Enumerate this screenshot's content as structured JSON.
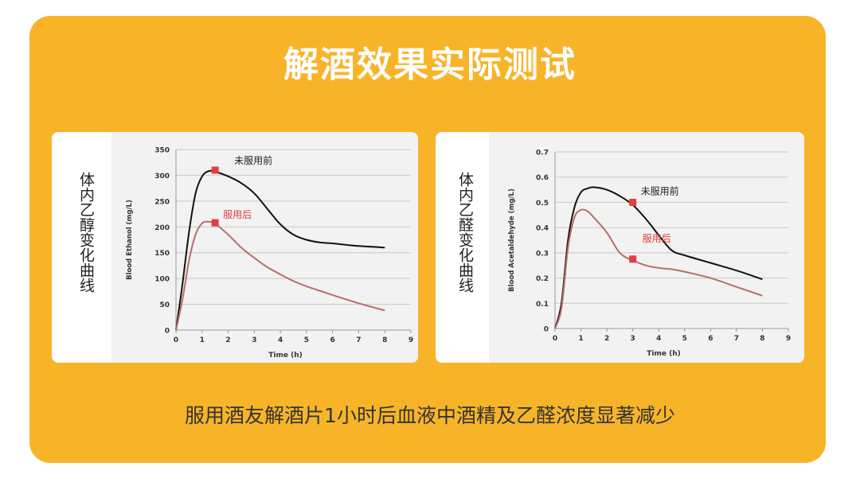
{
  "title": "解酒效果实际测试",
  "caption": "服用酒友解酒片1小时后血液中酒精及乙醛浓度显著减少",
  "colors": {
    "banner": "#F8B429",
    "series_before": "#111111",
    "series_after": "#B86E67",
    "marker": "#E04040",
    "label_after": "#E04040"
  },
  "chart_data": [
    {
      "type": "line",
      "side_label": "体内乙醇变化曲线",
      "xlabel": "Time (h)",
      "ylabel": "Blood Ethanol (mg/L)",
      "xlim": [
        0,
        9
      ],
      "ylim": [
        0,
        350
      ],
      "xticks": [
        "0",
        "1",
        "2",
        "3",
        "4",
        "5",
        "6",
        "7",
        "8",
        "9"
      ],
      "yticks": [
        "0",
        "50",
        "100",
        "150",
        "200",
        "250",
        "300",
        "350"
      ],
      "grid": true,
      "series": [
        {
          "name": "未服用前",
          "x": [
            0,
            0.25,
            0.5,
            0.75,
            1.0,
            1.25,
            1.5,
            2,
            2.5,
            3,
            3.5,
            4,
            4.5,
            5,
            5.5,
            6,
            7,
            8
          ],
          "y": [
            0,
            90,
            190,
            265,
            298,
            308,
            307,
            298,
            285,
            265,
            235,
            205,
            185,
            175,
            170,
            168,
            163,
            160
          ],
          "marker": {
            "x": 1.5,
            "y": 310
          },
          "label": "未服用前"
        },
        {
          "name": "服用后",
          "x": [
            0,
            0.25,
            0.5,
            0.75,
            1.0,
            1.25,
            1.5,
            2,
            2.5,
            3,
            3.5,
            4,
            4.5,
            5,
            6,
            7,
            8
          ],
          "y": [
            0,
            60,
            135,
            185,
            207,
            210,
            206,
            185,
            160,
            140,
            122,
            108,
            95,
            85,
            68,
            52,
            38
          ],
          "marker": {
            "x": 1.5,
            "y": 208
          },
          "label": "服用后"
        }
      ]
    },
    {
      "type": "line",
      "side_label": "体内乙醛变化曲线",
      "xlabel": "Time (h)",
      "ylabel": "Blood Acetaldehyde (mg/L)",
      "xlim": [
        0,
        9
      ],
      "ylim": [
        0,
        0.7
      ],
      "xticks": [
        "0",
        "1",
        "2",
        "3",
        "4",
        "5",
        "6",
        "7",
        "8",
        "9"
      ],
      "yticks": [
        "0",
        "0.1",
        "0.2",
        "0.3",
        "0.4",
        "0.5",
        "0.6",
        "0.7"
      ],
      "grid": true,
      "series": [
        {
          "name": "未服用前",
          "x": [
            0,
            0.25,
            0.5,
            0.75,
            1.0,
            1.25,
            1.5,
            2,
            2.5,
            3,
            3.5,
            4,
            4.5,
            5,
            6,
            7,
            8
          ],
          "y": [
            0,
            0.1,
            0.35,
            0.48,
            0.54,
            0.555,
            0.56,
            0.55,
            0.525,
            0.49,
            0.435,
            0.37,
            0.31,
            0.29,
            0.26,
            0.23,
            0.195
          ],
          "marker": {
            "x": 3,
            "y": 0.5
          },
          "label": "未服用前"
        },
        {
          "name": "服用后",
          "x": [
            0,
            0.25,
            0.5,
            0.75,
            1.0,
            1.25,
            1.5,
            2,
            2.5,
            3,
            3.5,
            4,
            4.5,
            5,
            6,
            7,
            8
          ],
          "y": [
            0,
            0.08,
            0.32,
            0.44,
            0.47,
            0.465,
            0.44,
            0.38,
            0.3,
            0.27,
            0.25,
            0.24,
            0.235,
            0.225,
            0.2,
            0.165,
            0.13
          ],
          "marker": {
            "x": 3,
            "y": 0.275
          },
          "label": "服用后"
        }
      ]
    }
  ]
}
